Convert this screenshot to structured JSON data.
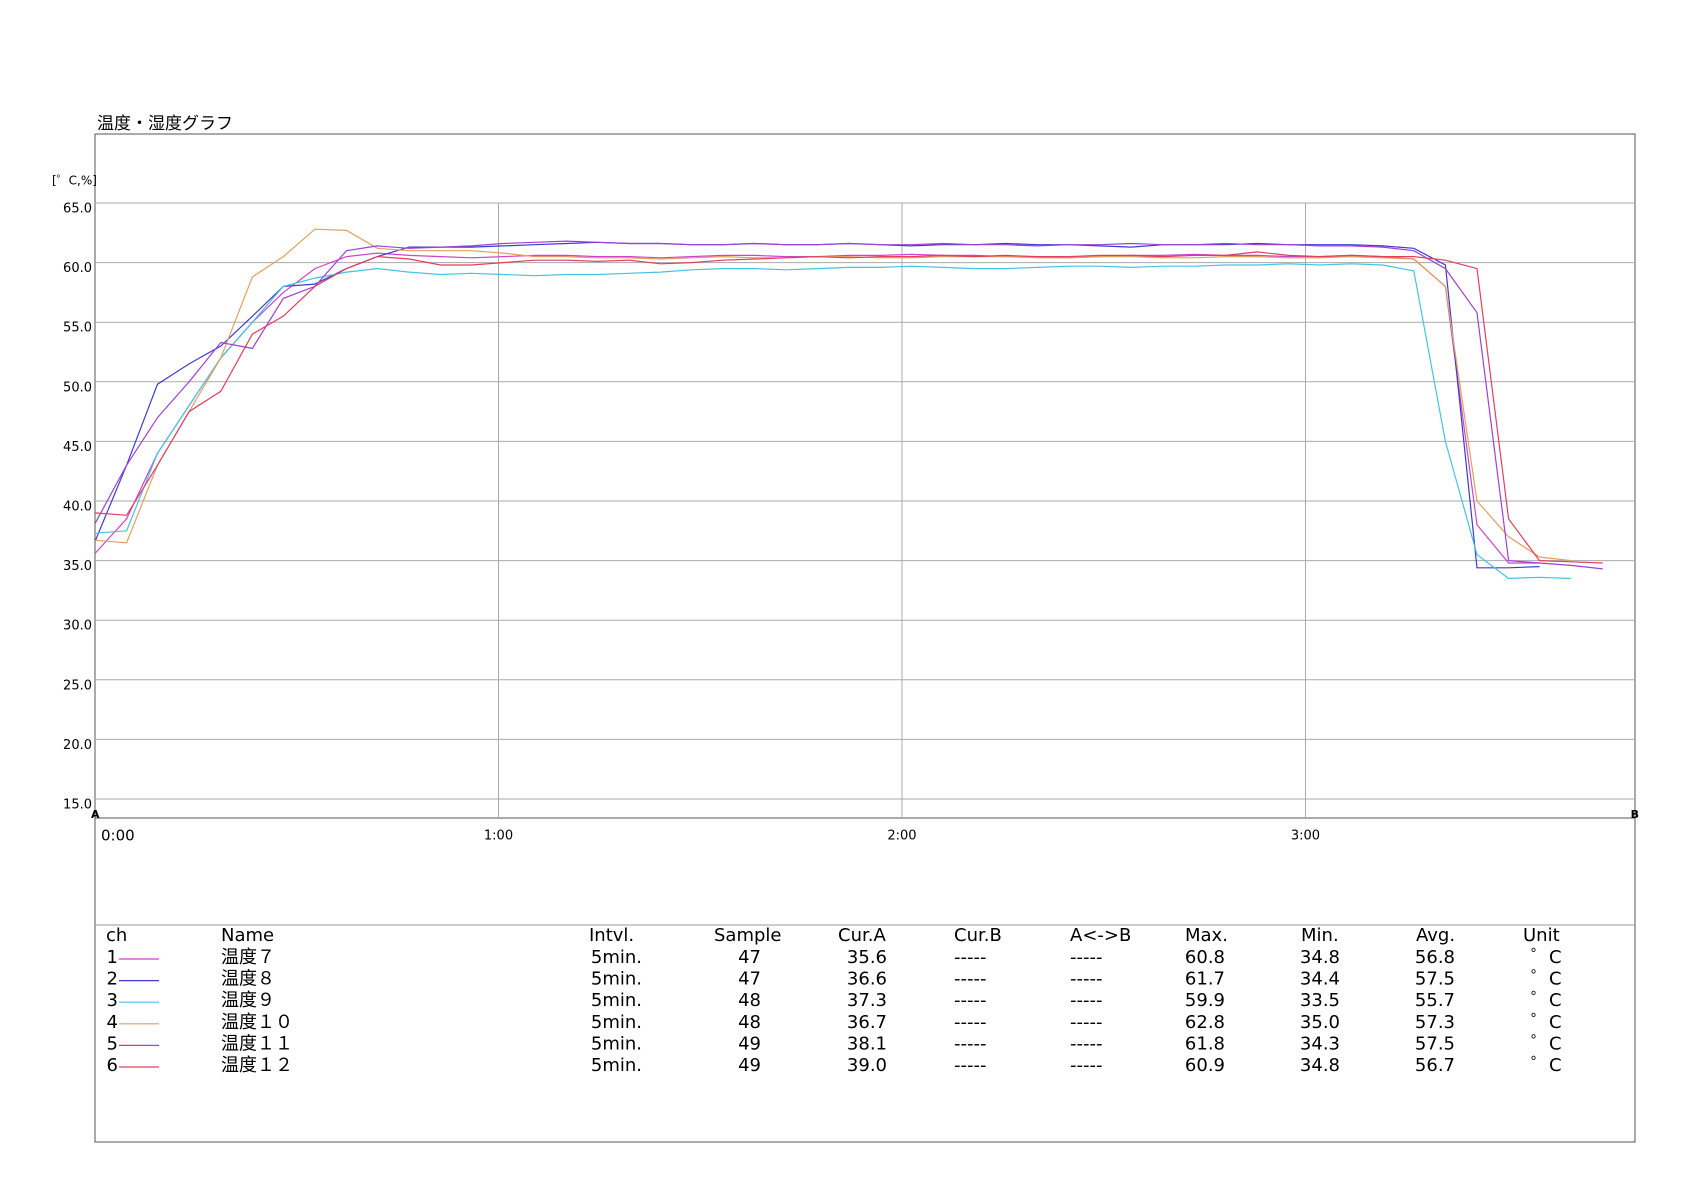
{
  "chart_data": {
    "type": "line",
    "title": "温度・湿度グラフ",
    "y_label": "[゜C,%]",
    "cursor_labels": [
      "A",
      "B"
    ],
    "x": [
      0,
      4.7,
      9.3,
      14.0,
      18.7,
      23.4,
      28.0,
      32.7,
      37.4,
      42.0,
      46.7,
      51.4,
      56.0,
      60.7,
      65.4,
      70.1,
      74.7,
      79.4,
      84.1,
      88.7,
      93.4,
      98.1,
      102.7,
      107.4,
      112.1,
      116.8,
      121.4,
      126.1,
      130.8,
      135.4,
      140.1,
      144.8,
      149.4,
      154.1,
      158.8,
      163.5,
      168.1,
      172.8,
      177.5,
      182.1,
      186.8,
      191.5,
      196.1,
      200.8,
      205.5,
      210.2,
      214.8,
      219.5,
      224.2
    ],
    "xlim": [
      0,
      229
    ],
    "xticks": [
      {
        "value": 0,
        "label": "0:00"
      },
      {
        "value": 60,
        "label": "1:00"
      },
      {
        "value": 120,
        "label": "2:00"
      },
      {
        "value": 180,
        "label": "3:00"
      }
    ],
    "ylim": [
      15,
      65
    ],
    "yticks": [
      {
        "value": 15,
        "label": "15.0"
      },
      {
        "value": 20,
        "label": "20.0"
      },
      {
        "value": 25,
        "label": "25.0"
      },
      {
        "value": 30,
        "label": "30.0"
      },
      {
        "value": 35,
        "label": "35.0"
      },
      {
        "value": 40,
        "label": "40.0"
      },
      {
        "value": 45,
        "label": "45.0"
      },
      {
        "value": 50,
        "label": "50.0"
      },
      {
        "value": 55,
        "label": "55.0"
      },
      {
        "value": 60,
        "label": "60.0"
      },
      {
        "value": 65,
        "label": "65.0"
      }
    ],
    "grid": true,
    "series": [
      {
        "name": "温度７",
        "color": "#cc44cc",
        "values": [
          35.6,
          38.5,
          44.0,
          48.0,
          52.0,
          55.0,
          57.5,
          59.5,
          60.5,
          60.8,
          60.6,
          60.5,
          60.4,
          60.5,
          60.6,
          60.6,
          60.5,
          60.5,
          60.4,
          60.5,
          60.6,
          60.6,
          60.5,
          60.5,
          60.6,
          60.6,
          60.7,
          60.6,
          60.6,
          60.5,
          60.5,
          60.4,
          60.5,
          60.6,
          60.6,
          60.7,
          60.6,
          60.6,
          60.5,
          60.5,
          60.6,
          60.5,
          60.3,
          58.0,
          38.0,
          34.8,
          34.8,
          null,
          null
        ]
      },
      {
        "name": "温度８",
        "color": "#3c3cd0",
        "values": [
          36.6,
          43.0,
          49.8,
          51.5,
          53.0,
          55.5,
          58.0,
          58.2,
          59.5,
          60.5,
          61.3,
          61.3,
          61.3,
          61.4,
          61.5,
          61.6,
          61.7,
          61.6,
          61.6,
          61.5,
          61.5,
          61.6,
          61.5,
          61.5,
          61.6,
          61.5,
          61.4,
          61.5,
          61.5,
          61.6,
          61.5,
          61.5,
          61.4,
          61.3,
          61.5,
          61.5,
          61.5,
          61.6,
          61.5,
          61.5,
          61.5,
          61.4,
          61.2,
          59.8,
          34.4,
          34.4,
          34.5,
          null,
          null
        ]
      },
      {
        "name": "温度９",
        "color": "#44c4e4",
        "values": [
          37.3,
          37.5,
          44.0,
          48.0,
          52.0,
          55.0,
          58.0,
          58.7,
          59.2,
          59.5,
          59.2,
          59.0,
          59.1,
          59.0,
          58.9,
          59.0,
          59.0,
          59.1,
          59.2,
          59.4,
          59.5,
          59.5,
          59.4,
          59.5,
          59.6,
          59.6,
          59.7,
          59.6,
          59.5,
          59.5,
          59.6,
          59.7,
          59.7,
          59.6,
          59.7,
          59.7,
          59.8,
          59.8,
          59.9,
          59.8,
          59.9,
          59.8,
          59.3,
          45.0,
          35.5,
          33.5,
          33.6,
          33.5,
          null
        ]
      },
      {
        "name": "温度１０",
        "color": "#e4a060",
        "values": [
          36.7,
          36.5,
          43.0,
          47.5,
          52.0,
          58.8,
          60.5,
          62.8,
          62.7,
          61.2,
          61.0,
          61.0,
          61.0,
          60.8,
          60.5,
          60.5,
          60.4,
          60.4,
          60.3,
          60.4,
          60.5,
          60.4,
          60.4,
          60.5,
          60.5,
          60.4,
          60.4,
          60.5,
          60.5,
          60.5,
          60.4,
          60.4,
          60.5,
          60.5,
          60.4,
          60.4,
          60.5,
          60.5,
          60.4,
          60.4,
          60.5,
          60.4,
          60.3,
          58.0,
          40.0,
          37.0,
          35.3,
          35.0,
          null
        ]
      },
      {
        "name": "温度１１",
        "color": "#a040d8",
        "values": [
          38.1,
          43.0,
          47.0,
          50.0,
          53.3,
          52.8,
          57.0,
          58.0,
          61.0,
          61.4,
          61.2,
          61.3,
          61.4,
          61.6,
          61.7,
          61.8,
          61.7,
          61.6,
          61.6,
          61.5,
          61.5,
          61.6,
          61.5,
          61.5,
          61.6,
          61.5,
          61.5,
          61.6,
          61.5,
          61.5,
          61.4,
          61.5,
          61.5,
          61.6,
          61.5,
          61.5,
          61.6,
          61.5,
          61.5,
          61.4,
          61.4,
          61.3,
          61.0,
          59.5,
          55.8,
          35.0,
          34.8,
          34.6,
          34.3
        ]
      },
      {
        "name": "温度１２",
        "color": "#e04060",
        "values": [
          39.0,
          38.8,
          43.0,
          47.5,
          49.2,
          54.0,
          55.5,
          58.0,
          59.5,
          60.5,
          60.3,
          59.8,
          59.8,
          60.0,
          60.2,
          60.2,
          60.1,
          60.2,
          59.9,
          60.0,
          60.2,
          60.3,
          60.4,
          60.5,
          60.4,
          60.5,
          60.5,
          60.6,
          60.5,
          60.6,
          60.5,
          60.5,
          60.6,
          60.6,
          60.5,
          60.6,
          60.6,
          60.9,
          60.6,
          60.5,
          60.6,
          60.5,
          60.5,
          60.2,
          59.5,
          38.5,
          35.0,
          34.9,
          34.8
        ]
      }
    ]
  },
  "table": {
    "columns": [
      "ch",
      "Name",
      "Intvl.",
      "Sample",
      "Cur.A",
      "Cur.B",
      "A<->B",
      "Max.",
      "Min.",
      "Avg.",
      "Unit"
    ],
    "rows": [
      [
        "1",
        "温度７",
        "5min.",
        "47",
        "35.6",
        "-----",
        "-----",
        "60.8",
        "34.8",
        "56.8",
        "゜C"
      ],
      [
        "2",
        "温度８",
        "5min.",
        "47",
        "36.6",
        "-----",
        "-----",
        "61.7",
        "34.4",
        "57.5",
        "゜C"
      ],
      [
        "3",
        "温度９",
        "5min.",
        "48",
        "37.3",
        "-----",
        "-----",
        "59.9",
        "33.5",
        "55.7",
        "゜C"
      ],
      [
        "4",
        "温度１０",
        "5min.",
        "48",
        "36.7",
        "-----",
        "-----",
        "62.8",
        "35.0",
        "57.3",
        "゜C"
      ],
      [
        "5",
        "温度１１",
        "5min.",
        "49",
        "38.1",
        "-----",
        "-----",
        "61.8",
        "34.3",
        "57.5",
        "゜C"
      ],
      [
        "6",
        "温度１２",
        "5min.",
        "49",
        "39.0",
        "-----",
        "-----",
        "60.9",
        "34.8",
        "56.7",
        "゜C"
      ]
    ]
  }
}
